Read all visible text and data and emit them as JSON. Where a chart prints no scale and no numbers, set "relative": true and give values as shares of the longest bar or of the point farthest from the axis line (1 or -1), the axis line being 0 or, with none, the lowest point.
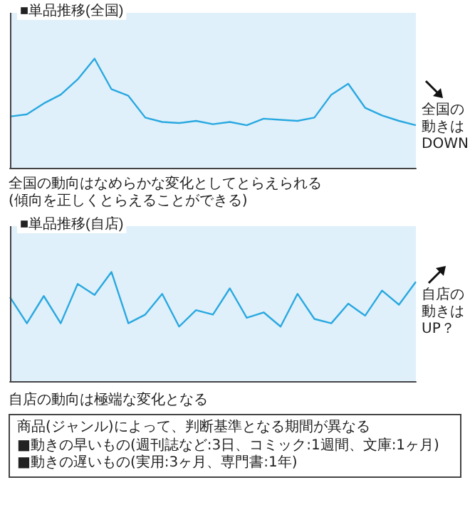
{
  "chart_data": [
    {
      "type": "line",
      "title": "■単品推移(全国)",
      "relative": true,
      "tick_labels": false,
      "marker": "none",
      "categories": [
        null,
        null,
        null,
        null,
        null,
        null,
        null,
        null,
        null,
        null,
        null,
        null,
        null,
        null,
        null,
        null,
        null,
        null,
        null,
        null,
        null,
        null,
        null,
        null,
        null
      ],
      "series": [
        {
          "color": "#29a8e0",
          "values": [
            0.47,
            0.49,
            0.59,
            0.67,
            0.81,
            1,
            0.72,
            0.66,
            0.46,
            0.42,
            0.41,
            0.43,
            0.4,
            0.42,
            0.39,
            0.45,
            0.44,
            0.43,
            0.46,
            0.67,
            0.77,
            0.55,
            0.48,
            0.43,
            0.39
          ]
        }
      ],
      "annotations": [
        "全国の動きはDOWN",
        "全国の動向はなめらかな変化としてとらえられる\n(傾向を正しくとらえることができる)"
      ]
    },
    {
      "type": "line",
      "title": "■単品推移(自店)",
      "relative": true,
      "tick_labels": false,
      "marker": "none",
      "categories": [
        null,
        null,
        null,
        null,
        null,
        null,
        null,
        null,
        null,
        null,
        null,
        null,
        null,
        null,
        null,
        null,
        null,
        null,
        null,
        null,
        null,
        null,
        null,
        null,
        null
      ],
      "series": [
        {
          "color": "#29a8e0",
          "values": [
            0.77,
            0.53,
            0.78,
            0.53,
            0.89,
            0.79,
            1,
            0.53,
            0.61,
            0.8,
            0.5,
            0.65,
            0.61,
            0.85,
            0.58,
            0.63,
            0.5,
            0.8,
            0.57,
            0.53,
            0.71,
            0.6,
            0.83,
            0.7,
            0.91
          ]
        }
      ],
      "annotations": [
        "自店の動きはUP？",
        "自店の動向は極端な変化となる",
        "商品(ジャンル)によって、判断基準となる期間が異なる",
        "■動きの早いもの(週刊誌など:3日、コミック:1週間、文庫:1ヶ月)",
        "■動きの遅いもの(実用:3ヶ月、専門書:1年)"
      ]
    }
  ]
}
